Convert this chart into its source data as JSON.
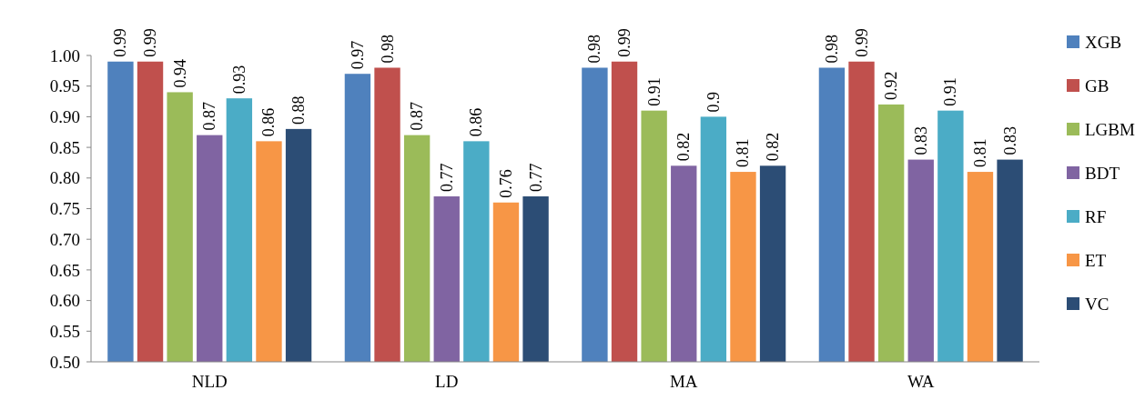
{
  "chart_data": {
    "type": "bar",
    "categories": [
      "NLD",
      "LD",
      "MA",
      "WA"
    ],
    "series": [
      {
        "name": "XGB",
        "color": "#4f81bd",
        "values": [
          0.99,
          0.97,
          0.98,
          0.98
        ]
      },
      {
        "name": "GB",
        "color": "#c0504d",
        "values": [
          0.99,
          0.98,
          0.99,
          0.99
        ]
      },
      {
        "name": "LGBM",
        "color": "#9bbb59",
        "values": [
          0.94,
          0.87,
          0.91,
          0.92
        ]
      },
      {
        "name": "BDT",
        "color": "#8064a2",
        "values": [
          0.87,
          0.77,
          0.82,
          0.83
        ]
      },
      {
        "name": "RF",
        "color": "#4bacc6",
        "values": [
          0.93,
          0.86,
          0.9,
          0.91
        ]
      },
      {
        "name": "ET",
        "color": "#f79646",
        "values": [
          0.86,
          0.76,
          0.81,
          0.81
        ]
      },
      {
        "name": "VC",
        "color": "#2c4d75",
        "values": [
          0.88,
          0.77,
          0.82,
          0.83
        ]
      }
    ],
    "ylim": [
      0.5,
      1.0
    ],
    "yticks": [
      {
        "value": 0.5,
        "label": "0.50"
      },
      {
        "value": 0.55,
        "label": "0.55"
      },
      {
        "value": 0.6,
        "label": "0.60"
      },
      {
        "value": 0.65,
        "label": "0.65"
      },
      {
        "value": 0.7,
        "label": "0.70"
      },
      {
        "value": 0.75,
        "label": "0.75"
      },
      {
        "value": 0.8,
        "label": "0.80"
      },
      {
        "value": 0.85,
        "label": "0.85"
      },
      {
        "value": 0.9,
        "label": "0.90"
      },
      {
        "value": 0.95,
        "label": "0.95"
      },
      {
        "value": 1.0,
        "label": "1.00"
      }
    ],
    "data_labels": true,
    "legend": "right",
    "grid": false
  }
}
